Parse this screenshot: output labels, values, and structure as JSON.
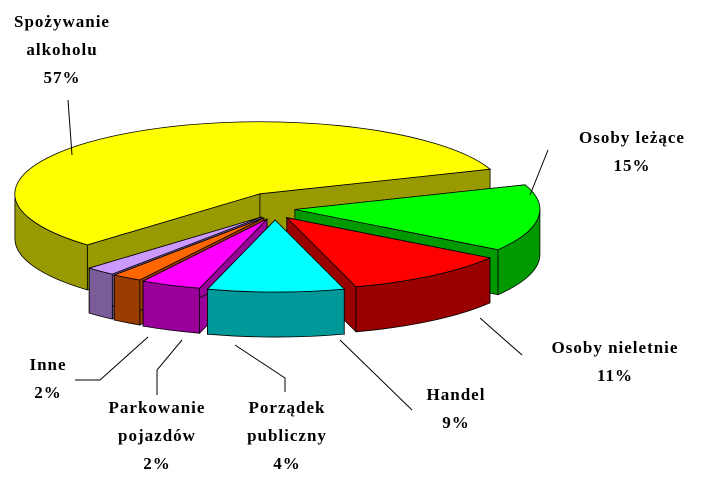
{
  "chart_data": {
    "type": "pie",
    "categories": [
      "Spożywanie alkoholu",
      "Osoby leżące",
      "Osoby nieletnie",
      "Handel",
      "Porządek publiczny",
      "Parkowanie pojazdów",
      "Inne"
    ],
    "values": [
      57,
      15,
      11,
      9,
      4,
      2,
      2
    ],
    "value_labels": [
      "57%",
      "15%",
      "11%",
      "9%",
      "4%",
      "2%",
      "2%"
    ],
    "colors": [
      "#ffff00",
      "#00ff00",
      "#ff0000",
      "#00ffff",
      "#ff00ff",
      "#ff6600",
      "#cc99ff"
    ]
  }
}
